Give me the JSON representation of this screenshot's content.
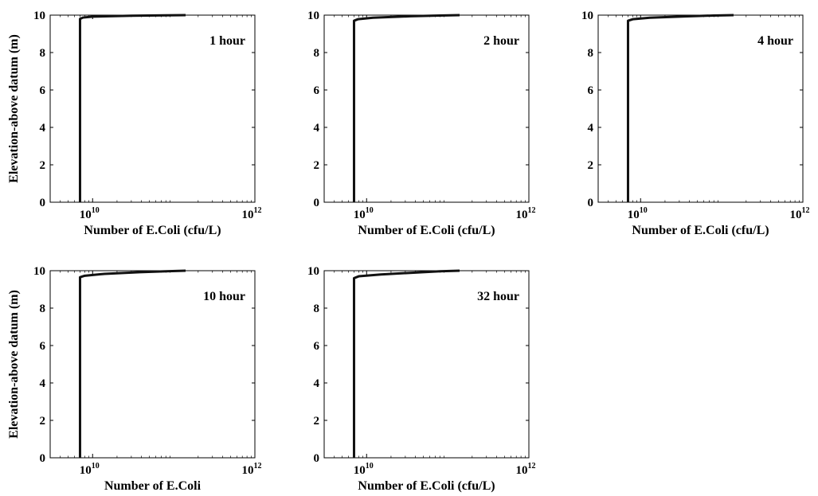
{
  "chart_data": [
    {
      "type": "line",
      "annotation": "1 hour",
      "xlabel": "Number of E.Coli (cfu/L)",
      "ylabel": "Elevation-above datum (m)",
      "xscale": "log",
      "xlim": [
        3000000000,
        1000000000000
      ],
      "ylim": [
        0,
        10
      ],
      "xticks": [
        {
          "base": "10",
          "exp": "10"
        },
        {
          "base": "10",
          "exp": "12"
        }
      ],
      "yticks": [
        "0",
        "2",
        "4",
        "6",
        "8",
        "10"
      ],
      "series": [
        {
          "x": [
            7000000000,
            7000000000,
            7600000000,
            10000000000,
            30000000000,
            80000000000,
            140000000000
          ],
          "y": [
            0,
            9.8,
            9.87,
            9.92,
            9.97,
            9.99,
            10
          ]
        }
      ]
    },
    {
      "type": "line",
      "annotation": "2 hour",
      "xlabel": "Number of E.Coli (cfu/L)",
      "ylabel": "",
      "xscale": "log",
      "xlim": [
        3000000000,
        1000000000000
      ],
      "ylim": [
        0,
        10
      ],
      "xticks": [
        {
          "base": "10",
          "exp": "10"
        },
        {
          "base": "10",
          "exp": "12"
        }
      ],
      "yticks": [
        "0",
        "2",
        "4",
        "6",
        "8",
        "10"
      ],
      "series": [
        {
          "x": [
            7000000000,
            7000000000,
            7800000000,
            12000000000,
            35000000000,
            80000000000,
            140000000000
          ],
          "y": [
            0,
            9.7,
            9.78,
            9.86,
            9.94,
            9.98,
            10
          ]
        }
      ]
    },
    {
      "type": "line",
      "annotation": "4 hour",
      "xlabel": "Number of E.Coli (cfu/L)",
      "ylabel": "",
      "xscale": "log",
      "xlim": [
        3000000000,
        1000000000000
      ],
      "ylim": [
        0,
        10
      ],
      "xticks": [
        {
          "base": "10",
          "exp": "10"
        },
        {
          "base": "10",
          "exp": "12"
        }
      ],
      "yticks": [
        "0",
        "2",
        "4",
        "6",
        "8",
        "10"
      ],
      "series": [
        {
          "x": [
            7000000000,
            7000000000,
            8000000000,
            13000000000,
            35000000000,
            80000000000,
            140000000000
          ],
          "y": [
            0,
            9.7,
            9.78,
            9.86,
            9.93,
            9.98,
            10
          ]
        }
      ]
    },
    {
      "type": "line",
      "annotation": "10 hour",
      "xlabel": "Number of E.Coli",
      "ylabel": "Elevation-above datum (m)",
      "xscale": "log",
      "xlim": [
        3000000000,
        1000000000000
      ],
      "ylim": [
        0,
        10
      ],
      "xticks": [
        {
          "base": "10",
          "exp": "10"
        },
        {
          "base": "10",
          "exp": "12"
        }
      ],
      "yticks": [
        "0",
        "2",
        "4",
        "6",
        "8",
        "10"
      ],
      "series": [
        {
          "x": [
            7000000000,
            7000000000,
            8000000000,
            14000000000,
            38000000000,
            80000000000,
            140000000000
          ],
          "y": [
            0,
            9.65,
            9.73,
            9.83,
            9.92,
            9.97,
            10
          ]
        }
      ]
    },
    {
      "type": "line",
      "annotation": "32 hour",
      "xlabel": "Number of E.Coli (cfu/L)",
      "ylabel": "",
      "xscale": "log",
      "xlim": [
        3000000000,
        1000000000000
      ],
      "ylim": [
        0,
        10
      ],
      "xticks": [
        {
          "base": "10",
          "exp": "10"
        },
        {
          "base": "10",
          "exp": "12"
        }
      ],
      "yticks": [
        "0",
        "2",
        "4",
        "6",
        "8",
        "10"
      ],
      "series": [
        {
          "x": [
            7000000000,
            7000000000,
            8000000000,
            15000000000,
            40000000000,
            80000000000,
            140000000000
          ],
          "y": [
            0,
            9.6,
            9.7,
            9.8,
            9.9,
            9.97,
            10
          ]
        }
      ]
    }
  ]
}
